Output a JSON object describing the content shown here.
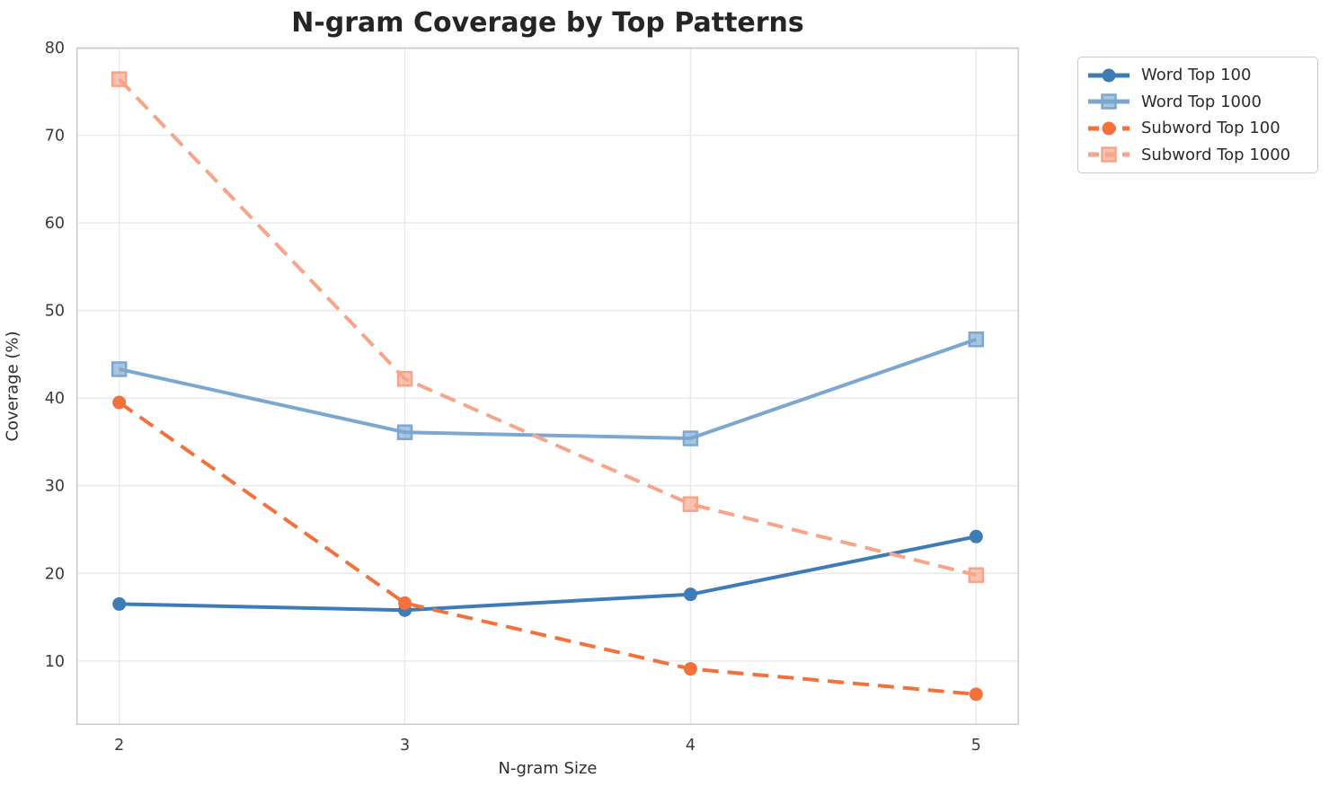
{
  "title": "N-gram Coverage by Top Patterns",
  "chart_data": {
    "type": "line",
    "title": "N-gram Coverage by Top Patterns",
    "xlabel": "N-gram Size",
    "ylabel": "Coverage (%)",
    "x": [
      2,
      3,
      4,
      5
    ],
    "series": [
      {
        "name": "Word Top 100",
        "values": [
          16.5,
          15.8,
          17.6,
          24.2
        ],
        "color": "#3e7cb7",
        "line_style": "solid",
        "marker": "circle"
      },
      {
        "name": "Word Top 1000",
        "values": [
          43.3,
          36.1,
          35.4,
          46.7
        ],
        "color": "#7ba7d0",
        "line_style": "solid",
        "marker": "square"
      },
      {
        "name": "Subword Top 100",
        "values": [
          39.5,
          16.6,
          9.1,
          6.2
        ],
        "color": "#f4713c",
        "line_style": "dashed",
        "marker": "circle"
      },
      {
        "name": "Subword Top 1000",
        "values": [
          76.4,
          42.2,
          27.9,
          19.8
        ],
        "color": "#f8a488",
        "line_style": "dashed",
        "marker": "square"
      }
    ],
    "xticks": [
      2,
      3,
      4,
      5
    ],
    "yticks": [
      10,
      20,
      30,
      40,
      50,
      60,
      70,
      80
    ],
    "xlim": [
      1.85,
      5.15
    ],
    "ylim": [
      2.7,
      80
    ],
    "grid": true,
    "grid_color": "#e9e9e9",
    "spine_color": "#cccccc",
    "legend_position": "outside-upper-right"
  }
}
